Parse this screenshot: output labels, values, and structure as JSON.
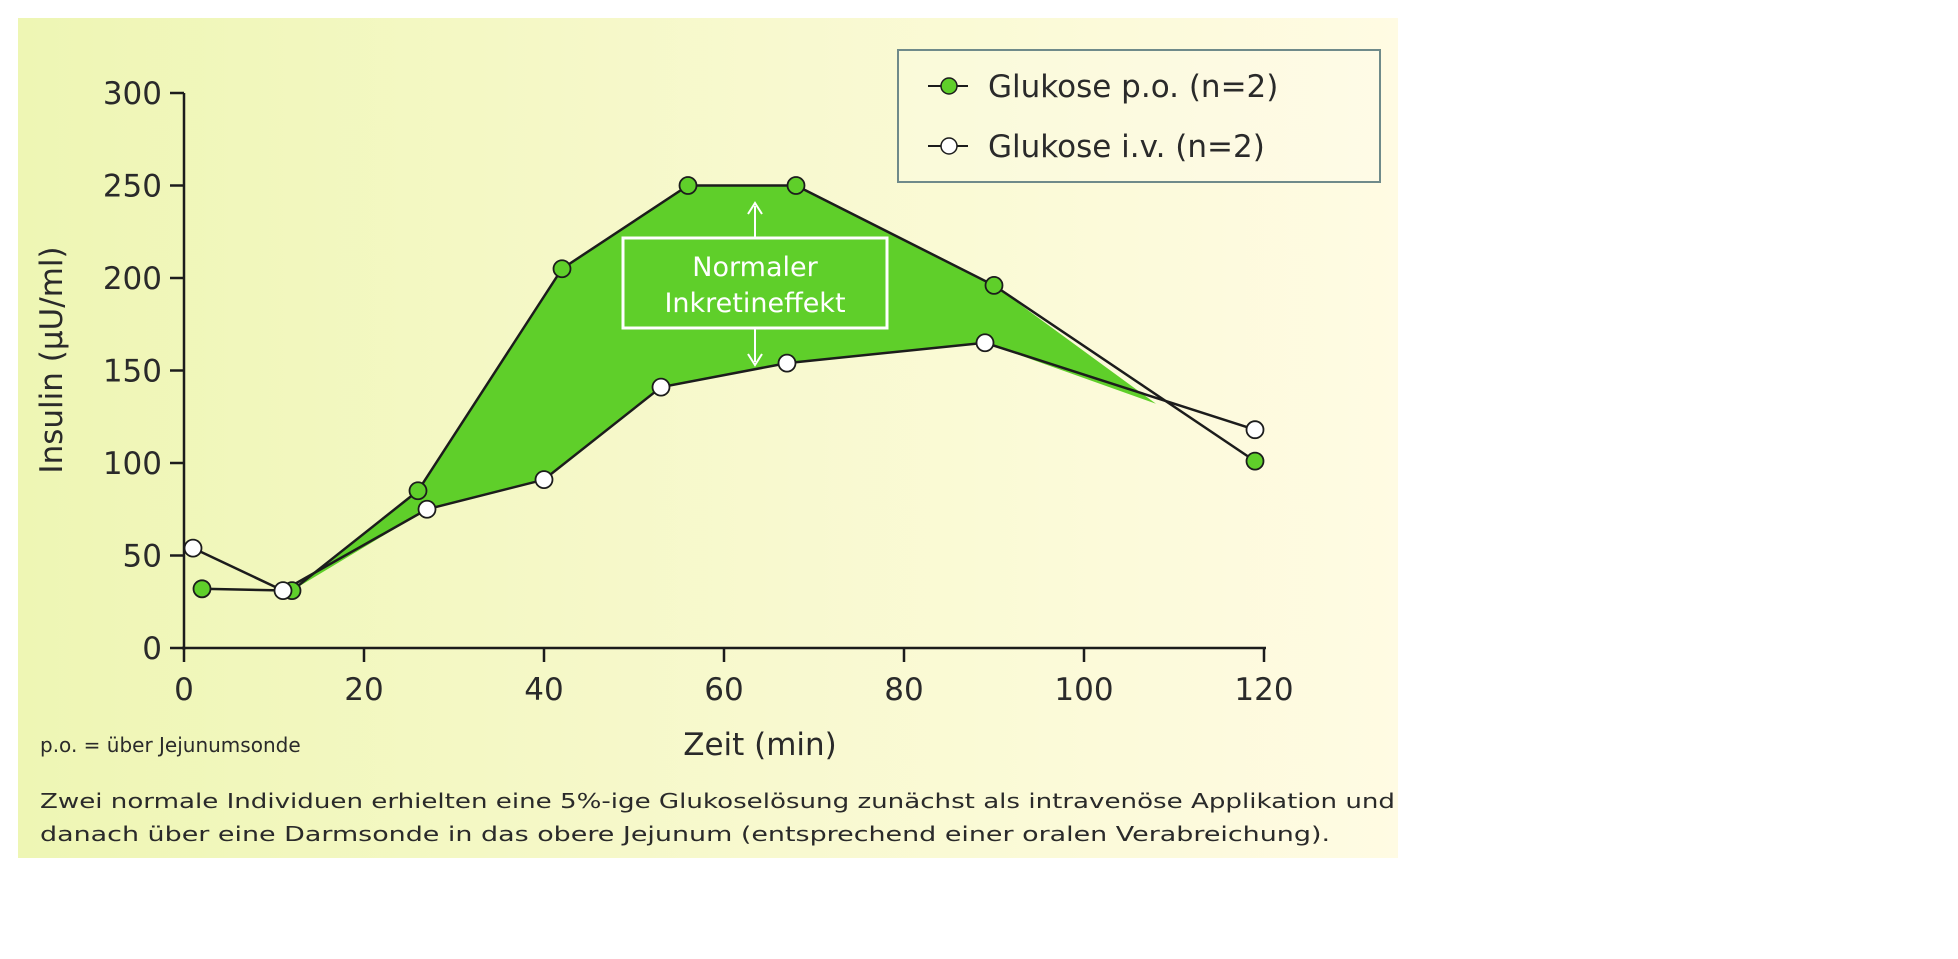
{
  "chart_data": {
    "type": "line",
    "xlabel": "Zeit (min)",
    "ylabel": "Insulin (µU/ml)",
    "xlim": [
      0,
      120
    ],
    "ylim": [
      0,
      300
    ],
    "xticks": [
      0,
      20,
      40,
      60,
      80,
      100,
      120
    ],
    "yticks": [
      0,
      50,
      100,
      150,
      200,
      250,
      300
    ],
    "grid": false,
    "legend_position": "top-right",
    "series": [
      {
        "name": "Glukose p.o. (n=2)",
        "marker": "filled",
        "color": "#5fcf2a",
        "x": [
          2,
          12,
          26,
          42,
          56,
          68,
          90,
          119
        ],
        "y": [
          32,
          31,
          85,
          205,
          250,
          250,
          196,
          101
        ]
      },
      {
        "name": "Glukose i.v. (n=2)",
        "marker": "open",
        "color": "#ffffff",
        "x": [
          1,
          11,
          27,
          40,
          53,
          67,
          89,
          119
        ],
        "y": [
          54,
          31,
          75,
          91,
          141,
          154,
          165,
          118
        ]
      }
    ],
    "annotation": {
      "lines": [
        "Normaler",
        "Inkretineffekt"
      ],
      "x": 63,
      "fill_color": "#5fcf2a"
    },
    "notes": {
      "abbreviation": "p.o. = über Jejunumsonde",
      "caption_lines": [
        "Zwei normale Individuen erhielten eine 5%-ige Glukoselösung zunächst als intravenöse Applikation und",
        "danach über eine Darmsonde in das obere Jejunum (entsprechend einer oralen Verabreichung)."
      ]
    },
    "colors": {
      "background_left": "#eef6b4",
      "background_right": "#fffbe3",
      "line": "#1c1c1c",
      "text": "#2a2a2a"
    }
  }
}
